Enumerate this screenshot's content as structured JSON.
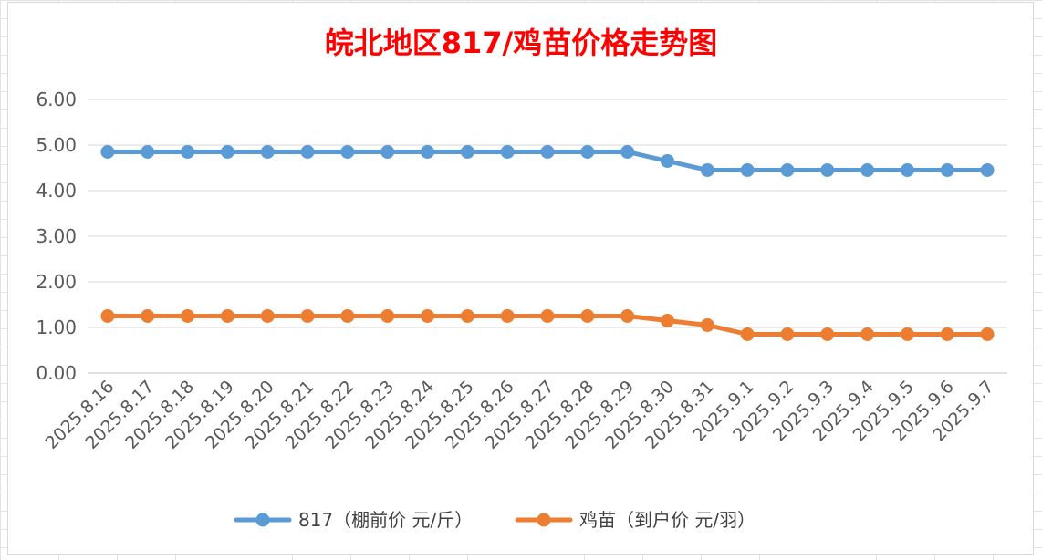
{
  "chart_data": {
    "type": "line",
    "title": "皖北地区817/鸡苗价格走势图",
    "xlabel": "",
    "ylabel": "",
    "categories": [
      "2025.8.16",
      "2025.8.17",
      "2025.8.18",
      "2025.8.19",
      "2025.8.20",
      "2025.8.21",
      "2025.8.22",
      "2025.8.23",
      "2025.8.24",
      "2025.8.25",
      "2025.8.26",
      "2025.8.27",
      "2025.8.28",
      "2025.8.29",
      "2025.8.30",
      "2025.8.31",
      "2025.9.1",
      "2025.9.2",
      "2025.9.3",
      "2025.9.4",
      "2025.9.5",
      "2025.9.6",
      "2025.9.7"
    ],
    "yticks": [
      "0.00",
      "1.00",
      "2.00",
      "3.00",
      "4.00",
      "5.00",
      "6.00"
    ],
    "ylim": [
      0,
      6
    ],
    "grid": true,
    "legend": "bottom",
    "series": [
      {
        "name": "817（棚前价 元/斤）",
        "color": "#5b9bd5",
        "values": [
          4.85,
          4.85,
          4.85,
          4.85,
          4.85,
          4.85,
          4.85,
          4.85,
          4.85,
          4.85,
          4.85,
          4.85,
          4.85,
          4.85,
          4.65,
          4.45,
          4.45,
          4.45,
          4.45,
          4.45,
          4.45,
          4.45,
          4.45
        ]
      },
      {
        "name": "鸡苗（到户价 元/羽）",
        "color": "#ed7d31",
        "values": [
          1.25,
          1.25,
          1.25,
          1.25,
          1.25,
          1.25,
          1.25,
          1.25,
          1.25,
          1.25,
          1.25,
          1.25,
          1.25,
          1.25,
          1.15,
          1.05,
          0.85,
          0.85,
          0.85,
          0.85,
          0.85,
          0.85,
          0.85
        ]
      }
    ]
  }
}
